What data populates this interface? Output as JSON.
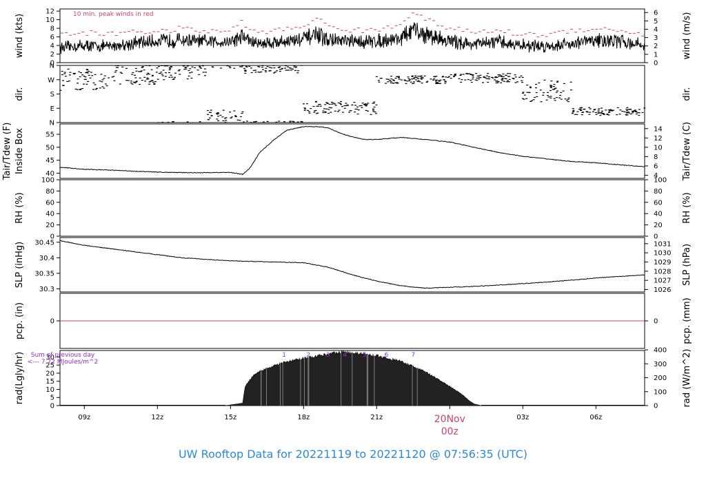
{
  "chart_data": {
    "title": "UW Rooftop Data for 20221119  to  20221120 @ 07:56:35  (UTC)",
    "x_axis": {
      "unit": "hours UTC (0 = 20221119 08:00)",
      "range": [
        0,
        24
      ],
      "ticks": [
        {
          "label": "09z",
          "x": 1
        },
        {
          "label": "12z",
          "x": 4
        },
        {
          "label": "15z",
          "x": 7
        },
        {
          "label": "18z",
          "x": 10
        },
        {
          "label": "21z",
          "x": 13
        },
        {
          "label": "00z",
          "x": 16
        },
        {
          "label": "03z",
          "x": 19
        },
        {
          "label": "06z",
          "x": 22
        }
      ],
      "date_label": "20Nov",
      "date_sublabel": "00z"
    },
    "panels": [
      {
        "id": "wind",
        "type": "line",
        "ylabel": "wind (kts)",
        "ylabel_right": "wind (m/s)",
        "ylim": [
          0,
          12.5
        ],
        "yticks": [
          0,
          2,
          4,
          6,
          8,
          10,
          12
        ],
        "yticks_right": [
          0,
          1,
          2,
          3,
          4,
          5,
          6
        ],
        "annotation": "10 min. peak winds in red",
        "x": [
          0,
          1,
          2,
          3,
          4,
          5,
          6,
          7,
          7.5,
          8,
          9,
          10,
          10.5,
          11,
          12,
          13,
          14,
          14.5,
          15,
          16,
          17,
          18,
          19,
          20,
          21,
          22,
          23,
          24
        ],
        "values": [
          3.5,
          4.0,
          3.8,
          4.5,
          5.0,
          5.3,
          4.8,
          5.0,
          6.2,
          4.5,
          4.8,
          5.5,
          6.5,
          5.3,
          4.8,
          5.0,
          5.8,
          7.5,
          6.5,
          5.0,
          4.3,
          4.8,
          4.0,
          3.8,
          4.5,
          5.2,
          5.0,
          4.0
        ],
        "peaks": [
          6.5,
          7.0,
          6.5,
          7.5,
          7.0,
          8.0,
          7.2,
          7.5,
          9.5,
          7.0,
          7.5,
          8.5,
          10.5,
          8.5,
          7.5,
          7.5,
          9.0,
          12.2,
          10.0,
          8.0,
          7.0,
          7.5,
          6.5,
          6.5,
          7.5,
          8.0,
          7.5,
          6.5
        ]
      },
      {
        "id": "dir",
        "type": "scatter",
        "ylabel": "dir.",
        "ylabel_right": "dir.",
        "ylim": [
          0,
          360
        ],
        "yticks": [
          0,
          90,
          180,
          270,
          360
        ],
        "ytick_labels": [
          "N",
          "E",
          "S",
          "W",
          "N"
        ],
        "segments": [
          {
            "x": [
              0,
              2
            ],
            "center": 270,
            "spread": 70
          },
          {
            "x": [
              2,
              4
            ],
            "center": 300,
            "spread": 60
          },
          {
            "x": [
              4,
              6
            ],
            "center": 320,
            "spread": 50
          },
          {
            "x": [
              6,
              7.5
            ],
            "center": 30,
            "spread": 50
          },
          {
            "x": [
              7.5,
              10
            ],
            "center": 340,
            "spread": 30
          },
          {
            "x": [
              10,
              12
            ],
            "center": 95,
            "spread": 40
          },
          {
            "x": [
              12,
              13
            ],
            "center": 90,
            "spread": 40
          },
          {
            "x": [
              13,
              16
            ],
            "center": 270,
            "spread": 25
          },
          {
            "x": [
              16,
              19
            ],
            "center": 280,
            "spread": 30
          },
          {
            "x": [
              19,
              21
            ],
            "center": 200,
            "spread": 70
          },
          {
            "x": [
              21,
              24
            ],
            "center": 70,
            "spread": 25
          }
        ]
      },
      {
        "id": "temp",
        "type": "line",
        "ylabel": "Tair/Tdew (F)",
        "ylabel2": "Inside Box",
        "ylabel_right": "Tair/Tdew (C)",
        "ylim": [
          38,
          59
        ],
        "yticks": [
          40,
          45,
          50,
          55
        ],
        "yticks_right": [
          4,
          6,
          8,
          10,
          12,
          14
        ],
        "x": [
          0,
          1,
          2,
          3,
          4,
          5,
          6,
          7,
          7.5,
          7.8,
          8.2,
          8.8,
          9.3,
          10,
          10.5,
          11,
          11.5,
          12,
          12.5,
          13,
          14,
          15,
          16,
          17,
          18,
          19,
          20,
          21,
          22,
          23,
          24
        ],
        "values": [
          42.3,
          41.5,
          41.2,
          40.8,
          40.4,
          40.2,
          40.2,
          40.3,
          39.5,
          42,
          48,
          53,
          56.5,
          58,
          58,
          57.5,
          55.5,
          54,
          53,
          53,
          53.8,
          53,
          52,
          50,
          48,
          46.5,
          45.5,
          44.5,
          44,
          43.2,
          42.5
        ]
      },
      {
        "id": "rh",
        "type": "line",
        "ylabel": "RH (%)",
        "ylabel_right": "RH (%)",
        "ylim": [
          0,
          100
        ],
        "yticks": [
          0,
          20,
          40,
          60,
          80,
          100
        ],
        "yticks_right": [
          0,
          20,
          40,
          60,
          80,
          100
        ],
        "x": [],
        "values": []
      },
      {
        "id": "slp",
        "type": "line",
        "ylabel": "SLP (inHg)",
        "ylabel_right": "SLP (hPa)",
        "ylim": [
          30.29,
          30.465
        ],
        "yticks": [
          30.3,
          30.35,
          30.4,
          30.45
        ],
        "yticks_right": [
          1026,
          1027,
          1028,
          1029,
          1030,
          1031
        ],
        "hpa_per_inhg": 33.8639,
        "x": [
          0,
          1,
          2,
          3,
          4,
          5,
          6,
          7,
          8,
          9,
          10,
          11,
          12,
          13,
          14,
          15,
          16,
          17,
          18,
          19,
          20,
          21,
          22,
          23,
          24
        ],
        "values": [
          30.455,
          30.44,
          30.43,
          30.42,
          30.41,
          30.4,
          30.395,
          30.39,
          30.388,
          30.386,
          30.384,
          30.37,
          30.345,
          30.325,
          30.31,
          30.302,
          30.305,
          30.308,
          30.312,
          30.317,
          30.322,
          30.328,
          30.335,
          30.34,
          30.345
        ]
      },
      {
        "id": "pcp",
        "type": "line",
        "ylabel": "pcp. (in)",
        "ylabel_right": "pcp. (mm)",
        "ylim": [
          -0.5,
          0.5
        ],
        "yticks": [
          0
        ],
        "yticks_right": [
          0
        ],
        "x": [
          0,
          24
        ],
        "values": [
          0,
          0
        ]
      },
      {
        "id": "rad",
        "type": "area",
        "ylabel": "rad(Lgly/hr)",
        "ylabel_right": "rad (W/m^2)",
        "ylim": [
          0,
          34
        ],
        "yticks": [
          0,
          5,
          10,
          15,
          20,
          25,
          30
        ],
        "yticks_right": [
          0,
          100,
          200,
          300,
          400
        ],
        "right_scale": 11.63,
        "x": [
          6.8,
          7.5,
          7.6,
          8,
          9,
          10,
          11,
          11.5,
          12,
          13,
          14,
          15,
          16,
          16.5,
          16.8,
          17,
          17.3
        ],
        "values": [
          0,
          1.5,
          12,
          20,
          26,
          29.5,
          32,
          33.5,
          33,
          31,
          27.5,
          21,
          12,
          7,
          3,
          1,
          0
        ],
        "annotation_line1": "Sum of previous day",
        "annotation_line2": "<--- 7.72 MJoules/m^2",
        "hour_markers": [
          {
            "label": "1",
            "x": 9.2
          },
          {
            "label": "2",
            "x": 10.2
          },
          {
            "label": "3",
            "x": 11.0
          },
          {
            "label": "4",
            "x": 11.7
          },
          {
            "label": "5",
            "x": 12.5
          },
          {
            "label": "6",
            "x": 13.4
          },
          {
            "label": "7",
            "x": 14.5
          }
        ]
      }
    ]
  }
}
